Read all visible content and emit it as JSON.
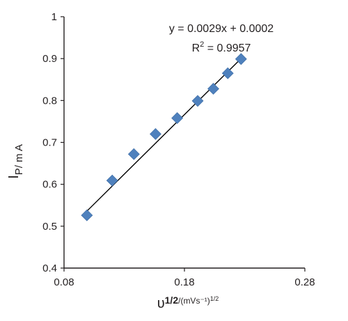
{
  "chart_data": {
    "type": "scatter",
    "title": "",
    "xlim": [
      0.08,
      0.28
    ],
    "ylim": [
      0.4,
      1.0
    ],
    "x_ticks": [
      "0.08",
      "0.18",
      "0.28"
    ],
    "y_ticks": [
      "0.4",
      "0.5",
      "0.6",
      "0.7",
      "0.8",
      "0.9",
      "1"
    ],
    "x_tick_values": [
      0.08,
      0.18,
      0.28
    ],
    "y_tick_values": [
      0.4,
      0.5,
      0.6,
      0.7,
      0.8,
      0.9,
      1.0
    ],
    "xlabel": {
      "base": "υ",
      "sup": "1/2",
      "unit": "/(mVs⁻¹)",
      "unit_sup": "1/2"
    },
    "ylabel": {
      "base": "I",
      "sub": "P/ m A"
    },
    "grid": false,
    "marker_color": "#4f81bd",
    "points": [
      {
        "x": 0.099,
        "y": 0.526
      },
      {
        "x": 0.12,
        "y": 0.609
      },
      {
        "x": 0.138,
        "y": 0.672
      },
      {
        "x": 0.156,
        "y": 0.72
      },
      {
        "x": 0.174,
        "y": 0.758
      },
      {
        "x": 0.191,
        "y": 0.799
      },
      {
        "x": 0.204,
        "y": 0.828
      },
      {
        "x": 0.216,
        "y": 0.865
      },
      {
        "x": 0.227,
        "y": 0.899
      }
    ],
    "trendline": {
      "x": [
        0.099,
        0.227
      ],
      "y": [
        0.536,
        0.9
      ]
    },
    "annotations": {
      "equation": "y = 0.0029x + 0.0002",
      "r2_prefix": "R",
      "r2_sup": "2",
      "r2_value": " = 0.9957"
    }
  }
}
